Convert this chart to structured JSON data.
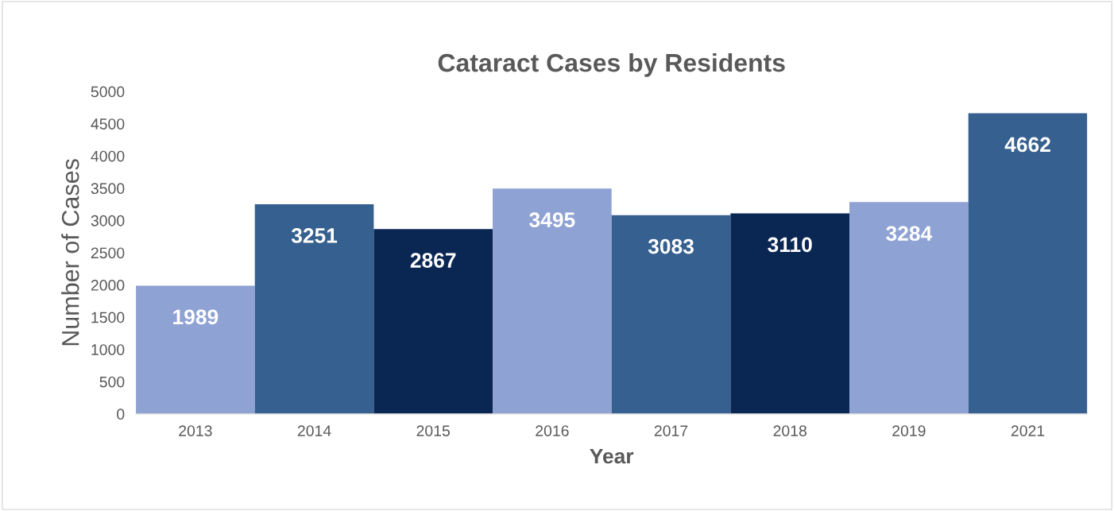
{
  "chart_data": {
    "type": "bar",
    "title": "Cataract Cases by Residents",
    "xlabel": "Year",
    "ylabel": "Number of Cases",
    "categories": [
      "2013",
      "2014",
      "2015",
      "2016",
      "2017",
      "2018",
      "2019",
      "2021"
    ],
    "values": [
      1989,
      3251,
      2867,
      3495,
      3083,
      3110,
      3284,
      4662
    ],
    "colors": [
      "#8fa2d4",
      "#36608f",
      "#0a2754",
      "#8fa2d4",
      "#36608f",
      "#0a2754",
      "#8fa2d4",
      "#36608f"
    ],
    "ylim": [
      0,
      5000
    ],
    "yticks": [
      0,
      500,
      1000,
      1500,
      2000,
      2500,
      3000,
      3500,
      4000,
      4500,
      5000
    ],
    "data_labels": true,
    "grid": false,
    "legend": false
  }
}
